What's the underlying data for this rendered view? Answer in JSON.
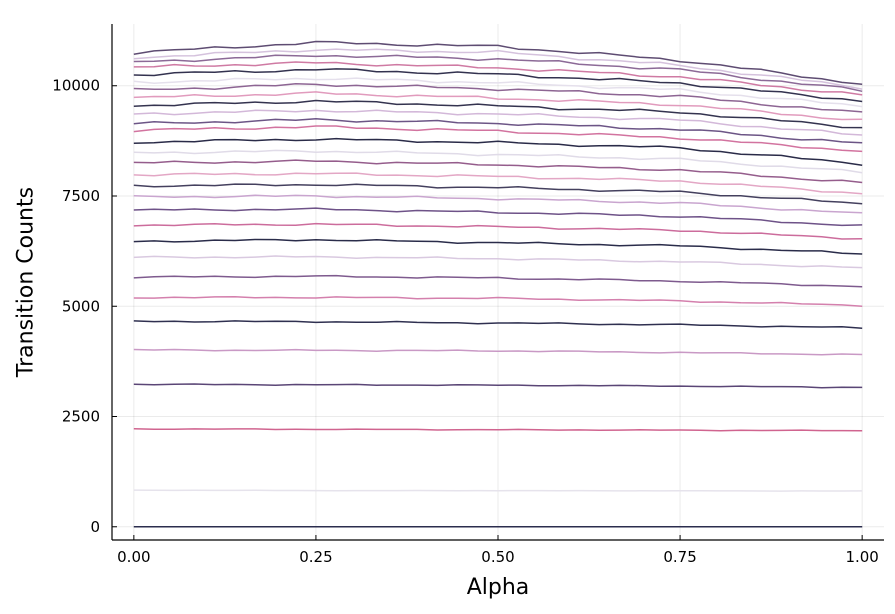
{
  "chart_data": {
    "type": "line",
    "title": "",
    "xlabel": "Alpha",
    "ylabel": "Transition Counts",
    "xlim": [
      -0.03,
      1.03
    ],
    "ylim": [
      -300,
      11400
    ],
    "xticks": [
      0.0,
      0.25,
      0.5,
      0.75,
      1.0
    ],
    "xtick_labels": [
      "0.00",
      "0.25",
      "0.50",
      "0.75",
      "1.00"
    ],
    "yticks": [
      0,
      2500,
      5000,
      7500,
      10000
    ],
    "ytick_labels": [
      "0",
      "2500",
      "5000",
      "7500",
      "10000"
    ],
    "grid": true,
    "legend": "none",
    "x": [
      0.0,
      0.25,
      0.5,
      0.75,
      1.0
    ],
    "series": [
      {
        "color": "#2b2d4e",
        "values": [
          0,
          0,
          0,
          0,
          0
        ]
      },
      {
        "color": "#e6e3ec",
        "values": [
          830,
          820,
          820,
          815,
          810
        ]
      },
      {
        "color": "#d0648f",
        "values": [
          2220,
          2210,
          2200,
          2190,
          2180
        ]
      },
      {
        "color": "#5a4676",
        "values": [
          3230,
          3220,
          3210,
          3190,
          3160
        ]
      },
      {
        "color": "#c999c5",
        "values": [
          4010,
          4000,
          3990,
          3950,
          3900
        ]
      },
      {
        "color": "#2f3050",
        "values": [
          4660,
          4650,
          4620,
          4580,
          4510
        ]
      },
      {
        "color": "#d480ad",
        "values": [
          5200,
          5200,
          5180,
          5120,
          5020
        ]
      },
      {
        "color": "#7e5a8e",
        "values": [
          5660,
          5680,
          5640,
          5570,
          5450
        ]
      },
      {
        "color": "#d9c9e0",
        "values": [
          6110,
          6120,
          6080,
          6010,
          5870
        ]
      },
      {
        "color": "#2a2c4a",
        "values": [
          6470,
          6510,
          6440,
          6370,
          6190
        ]
      },
      {
        "color": "#cc6c9c",
        "values": [
          6840,
          6860,
          6800,
          6720,
          6530
        ]
      },
      {
        "color": "#6e5288",
        "values": [
          7180,
          7200,
          7130,
          7040,
          6820
        ]
      },
      {
        "color": "#c9a5cf",
        "values": [
          7480,
          7500,
          7440,
          7340,
          7100
        ]
      },
      {
        "color": "#44405e",
        "values": [
          7730,
          7760,
          7690,
          7590,
          7330
        ]
      },
      {
        "color": "#e3a7c5",
        "values": [
          7980,
          8010,
          7940,
          7840,
          7560
        ]
      },
      {
        "color": "#955d8c",
        "values": [
          8250,
          8290,
          8210,
          8090,
          7800
        ]
      },
      {
        "color": "#e0dbe8",
        "values": [
          8480,
          8520,
          8440,
          8330,
          8040
        ]
      },
      {
        "color": "#2a2b48",
        "values": [
          8720,
          8790,
          8710,
          8590,
          8230
        ]
      },
      {
        "color": "#d2739f",
        "values": [
          8990,
          9070,
          8970,
          8820,
          8520
        ]
      },
      {
        "color": "#6c5586",
        "values": [
          9140,
          9230,
          9150,
          9010,
          8690
        ]
      },
      {
        "color": "#d3b8d9",
        "values": [
          9360,
          9440,
          9360,
          9220,
          8880
        ]
      },
      {
        "color": "#34334f",
        "values": [
          9550,
          9650,
          9540,
          9400,
          9050
        ]
      },
      {
        "color": "#e19bbd",
        "values": [
          9730,
          9830,
          9720,
          9570,
          9210
        ]
      },
      {
        "color": "#8d6593",
        "values": [
          9900,
          10030,
          9930,
          9760,
          9380
        ]
      },
      {
        "color": "#e5e0ec",
        "values": [
          10080,
          10170,
          10070,
          9900,
          9540
        ]
      },
      {
        "color": "#33324f",
        "values": [
          10250,
          10370,
          10260,
          10060,
          9660
        ]
      },
      {
        "color": "#cf7aa3",
        "values": [
          10420,
          10520,
          10410,
          10200,
          9790
        ]
      },
      {
        "color": "#8c6a97",
        "values": [
          10540,
          10690,
          10610,
          10360,
          9890
        ]
      },
      {
        "color": "#d5c2dd",
        "values": [
          10640,
          10820,
          10760,
          10460,
          9960
        ]
      },
      {
        "color": "#5e4c72",
        "values": [
          10750,
          10980,
          10890,
          10580,
          10040
        ]
      }
    ]
  }
}
